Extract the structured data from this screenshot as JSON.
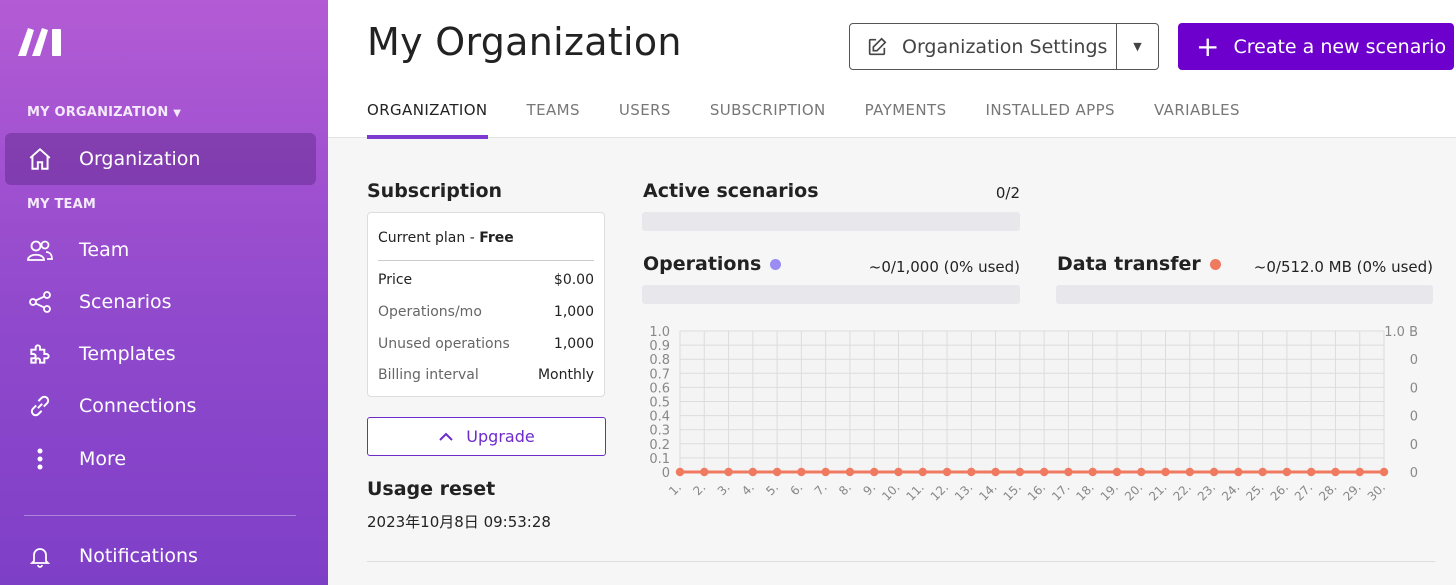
{
  "sidebar": {
    "org_section": "MY ORGANIZATION",
    "team_section": "MY TEAM",
    "items": [
      {
        "label": "Organization",
        "icon": "home-icon"
      },
      {
        "label": "Team",
        "icon": "users-icon"
      },
      {
        "label": "Scenarios",
        "icon": "share-icon"
      },
      {
        "label": "Templates",
        "icon": "puzzle-icon"
      },
      {
        "label": "Connections",
        "icon": "link-icon"
      },
      {
        "label": "More",
        "icon": "more-vertical-icon"
      },
      {
        "label": "Notifications",
        "icon": "bell-icon"
      }
    ]
  },
  "header": {
    "title": "My Organization",
    "org_settings_label": "Organization Settings",
    "create_label": "Create a new scenario",
    "tabs": [
      "ORGANIZATION",
      "TEAMS",
      "USERS",
      "SUBSCRIPTION",
      "PAYMENTS",
      "INSTALLED APPS",
      "VARIABLES"
    ]
  },
  "subscription": {
    "title": "Subscription",
    "current_plan_label": "Current plan - ",
    "current_plan_value": "Free",
    "rows": [
      {
        "key": "Price",
        "value": "$0.00"
      },
      {
        "key": "Operations/mo",
        "value": "1,000"
      },
      {
        "key": "Unused operations",
        "value": "1,000"
      },
      {
        "key": "Billing interval",
        "value": "Monthly"
      }
    ],
    "upgrade_label": "Upgrade"
  },
  "usage_reset": {
    "title": "Usage reset",
    "value": "2023年10月8日 09:53:28"
  },
  "active_scenarios": {
    "title": "Active scenarios",
    "value": "0/2",
    "fraction": 0
  },
  "operations": {
    "title": "Operations",
    "value": "~0/1,000 (0% used)",
    "fraction": 0,
    "color": "#9a8cf0"
  },
  "data_transfer": {
    "title": "Data transfer",
    "value": "~0/512.0 MB (0% used)",
    "fraction": 0,
    "color": "#f07a60"
  },
  "colors": {
    "accent": "#6d00cc",
    "series_line": "#f07a60"
  },
  "chart_data": {
    "type": "line",
    "x": [
      "1.",
      "2.",
      "3.",
      "4.",
      "5.",
      "6.",
      "7.",
      "8.",
      "9.",
      "10.",
      "11.",
      "12.",
      "13.",
      "14.",
      "15.",
      "16.",
      "17.",
      "18.",
      "19.",
      "20.",
      "21.",
      "22.",
      "23.",
      "24.",
      "25.",
      "26.",
      "27.",
      "28.",
      "29.",
      "30."
    ],
    "y_left_ticks": [
      "1.0",
      "0.9",
      "0.8",
      "0.7",
      "0.6",
      "0.5",
      "0.4",
      "0.3",
      "0.2",
      "0.1",
      "0"
    ],
    "y_right_ticks": [
      "1.0 B",
      "0",
      "0",
      "0",
      "0",
      "0"
    ],
    "ylim": [
      0,
      1
    ],
    "grid": true,
    "series": [
      {
        "values": [
          0,
          0,
          0,
          0,
          0,
          0,
          0,
          0,
          0,
          0,
          0,
          0,
          0,
          0,
          0,
          0,
          0,
          0,
          0,
          0,
          0,
          0,
          0,
          0,
          0,
          0,
          0,
          0,
          0,
          0
        ],
        "color": "#f07a60"
      }
    ]
  }
}
